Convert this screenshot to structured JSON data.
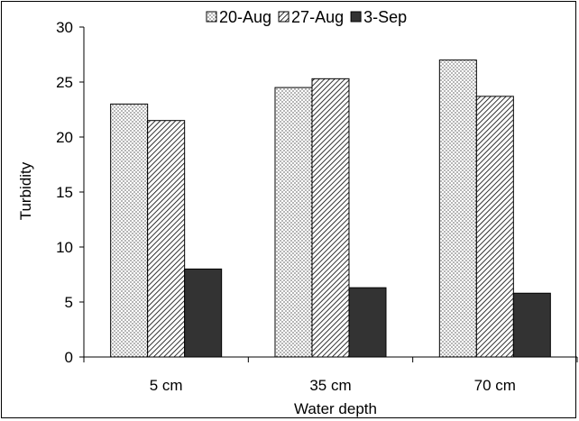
{
  "chart_data": {
    "type": "bar",
    "title": "",
    "xlabel": "Water depth",
    "ylabel": "Turbidity",
    "categories": [
      "5 cm",
      "35 cm",
      "70 cm"
    ],
    "series": [
      {
        "name": "20-Aug",
        "values": [
          23.0,
          24.5,
          27.0
        ],
        "pattern": "dots"
      },
      {
        "name": "27-Aug",
        "values": [
          21.5,
          25.3,
          23.7
        ],
        "pattern": "diagonal-hatch"
      },
      {
        "name": "3-Sep",
        "values": [
          8.0,
          6.3,
          5.8
        ],
        "pattern": "dark-fill"
      }
    ],
    "ylim": [
      0,
      30
    ],
    "yticks": [
      "0",
      "5",
      "10",
      "15",
      "20",
      "25",
      "30"
    ],
    "grid": false,
    "legend_position": "top"
  },
  "colors": {
    "dark_fill": "#333333",
    "stroke": "#000000",
    "background": "#ffffff"
  }
}
